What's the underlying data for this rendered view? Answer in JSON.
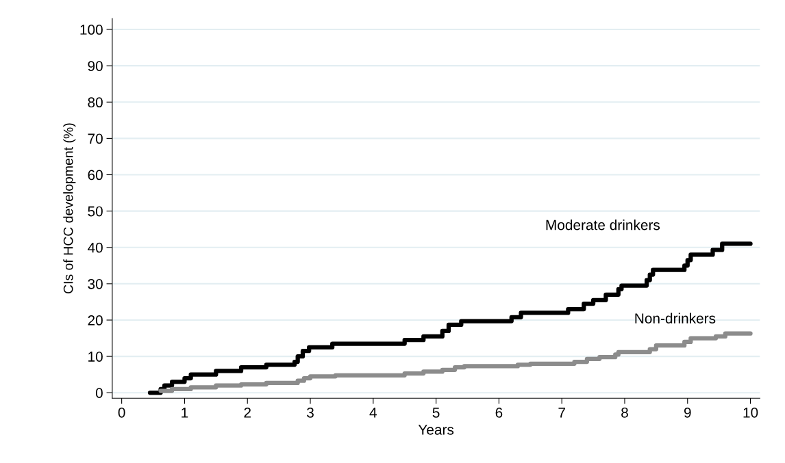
{
  "chart_data": {
    "type": "step",
    "xlabel": "Years",
    "ylabel": "CIs of HCC development (%)",
    "xlim": [
      -0.15,
      10.15
    ],
    "ylim": [
      -1.5,
      103
    ],
    "xticks": [
      0,
      1,
      2,
      3,
      4,
      5,
      6,
      7,
      8,
      9,
      10
    ],
    "yticks": [
      0,
      10,
      20,
      30,
      40,
      50,
      60,
      70,
      80,
      90,
      100
    ],
    "grid": "y",
    "legend": false,
    "series": [
      {
        "name": "Moderate drinkers",
        "color": "#000000",
        "x": [
          0.45,
          0.62,
          0.68,
          0.8,
          1.0,
          1.1,
          1.5,
          1.9,
          2.3,
          2.75,
          2.8,
          2.88,
          2.98,
          3.35,
          4.5,
          4.8,
          5.1,
          5.2,
          5.4,
          6.2,
          6.35,
          7.1,
          7.35,
          7.5,
          7.7,
          7.9,
          7.95,
          8.35,
          8.4,
          8.45,
          8.95,
          9.0,
          9.05,
          9.4,
          9.55,
          10.0
        ],
        "values": [
          0,
          1,
          2,
          3,
          4,
          5,
          6,
          7,
          7.7,
          8.5,
          10,
          11.5,
          12.5,
          13.5,
          14.5,
          15.5,
          17,
          18.7,
          19.7,
          20.8,
          22,
          23,
          24.5,
          25.5,
          27,
          28.5,
          29.5,
          31,
          32.5,
          33.8,
          35,
          36.5,
          38,
          39.3,
          41,
          41
        ]
      },
      {
        "name": "Non-drinkers",
        "color": "#8c8c8c",
        "x": [
          0.62,
          0.8,
          1.1,
          1.5,
          1.9,
          2.3,
          2.8,
          2.9,
          3.0,
          3.4,
          4.5,
          4.8,
          5.1,
          5.3,
          5.45,
          6.3,
          6.5,
          7.2,
          7.4,
          7.6,
          7.85,
          7.9,
          8.4,
          8.5,
          8.95,
          9.05,
          9.45,
          9.6,
          10.0
        ],
        "values": [
          0.5,
          1,
          1.5,
          2,
          2.3,
          2.7,
          3.3,
          4,
          4.5,
          4.8,
          5.3,
          5.8,
          6.3,
          7,
          7.3,
          7.7,
          8,
          8.5,
          9.3,
          9.8,
          10.5,
          11.2,
          12,
          13,
          14,
          15,
          15.5,
          16.3,
          16.3
        ]
      }
    ]
  }
}
